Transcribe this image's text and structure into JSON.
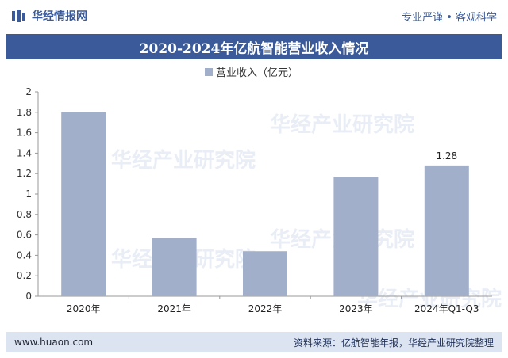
{
  "header": {
    "brand_name": "华经情报网",
    "slogan": "专业严谨 • 客观科学"
  },
  "title": "2020-2024年亿航智能营业收入情况",
  "footer": {
    "url": "www.huaon.com",
    "source": "资料来源：亿航智能年报，华经产业研究院整理"
  },
  "watermark": "华经产业研究院",
  "colors": {
    "brand": "#3a5a99",
    "bar": "#a1afca"
  },
  "chart_data": {
    "type": "bar",
    "categories": [
      "2020年",
      "2021年",
      "2022年",
      "2023年",
      "2024年Q1-Q3"
    ],
    "series": [
      {
        "name": "营业收入（亿元）",
        "values": [
          1.8,
          0.57,
          0.44,
          1.17,
          1.28
        ]
      }
    ],
    "data_labels": [
      "",
      "",
      "",
      "",
      "1.28"
    ],
    "ylim": [
      0,
      2
    ],
    "yticks": [
      "0",
      "0.2",
      "0.4",
      "0.6",
      "0.8",
      "1",
      "1.2",
      "1.4",
      "1.6",
      "1.8",
      "2"
    ],
    "grid": false,
    "legend": "top-center"
  }
}
